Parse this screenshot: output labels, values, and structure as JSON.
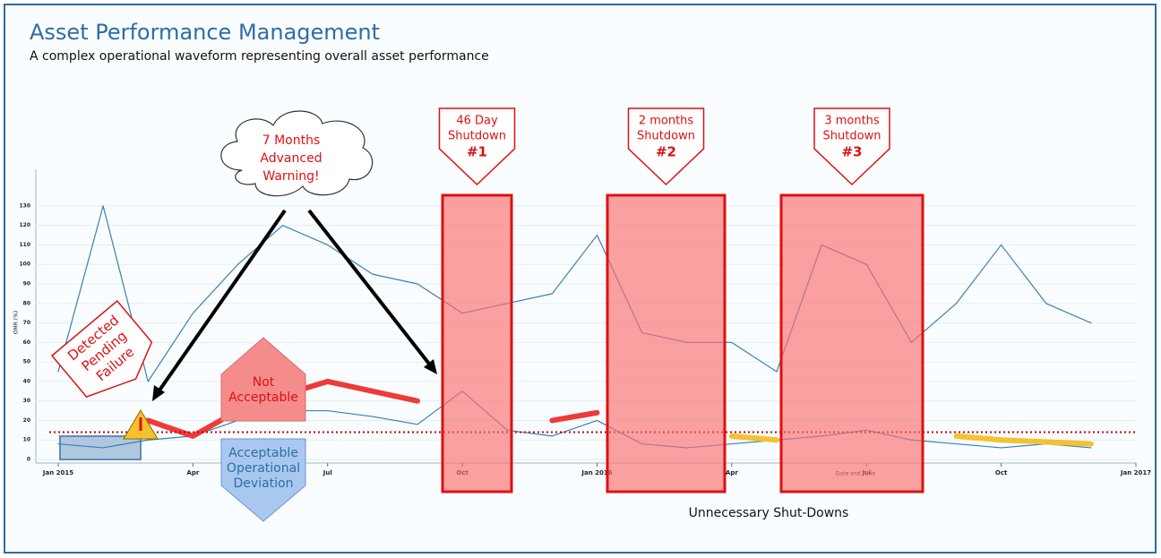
{
  "chart_data": {
    "type": "line",
    "title": "Asset Performance Management",
    "subtitle": "A complex operational waveform representing overall asset performance",
    "y_label": "OMR (%)",
    "x_label": "Date and Time",
    "x": [
      "2015-01",
      "2015-02",
      "2015-03",
      "2015-04",
      "2015-05",
      "2015-06",
      "2015-07",
      "2015-08",
      "2015-09",
      "2015-10",
      "2015-11",
      "2015-12",
      "2016-01",
      "2016-02",
      "2016-03",
      "2016-04",
      "2016-05",
      "2016-06",
      "2016-07",
      "2016-08",
      "2016-09",
      "2016-10",
      "2016-11",
      "2016-12"
    ],
    "xlim": [
      "2015-01",
      "2017-01"
    ],
    "xticks": [
      {
        "value": "2015-01",
        "label": "Jan 2015"
      },
      {
        "value": "2015-04",
        "label": "Apr"
      },
      {
        "value": "2015-07",
        "label": "Jul"
      },
      {
        "value": "2015-10",
        "label": "Oct"
      },
      {
        "value": "2016-01",
        "label": "Jan 2016"
      },
      {
        "value": "2016-04",
        "label": "Apr"
      },
      {
        "value": "2016-07",
        "label": "Jul"
      },
      {
        "value": "2016-10",
        "label": "Oct"
      },
      {
        "value": "2017-01",
        "label": "Jan 2017"
      }
    ],
    "ylim": [
      0,
      135
    ],
    "yticks": [
      0,
      10,
      20,
      30,
      40,
      50,
      60,
      70,
      80,
      90,
      100,
      110,
      120,
      130
    ],
    "threshold": 14,
    "series": [
      {
        "color": "#3a7fb5",
        "values": [
          45,
          130,
          40,
          75,
          100,
          120,
          110,
          95,
          90,
          75,
          80,
          85,
          115,
          65,
          60,
          60,
          45,
          110,
          100,
          60,
          80,
          110,
          80,
          70
        ]
      },
      {
        "color": "#3a7fb5",
        "values": [
          8,
          6,
          10,
          12,
          20,
          25,
          25,
          22,
          18,
          35,
          15,
          12,
          20,
          8,
          6,
          8,
          10,
          12,
          15,
          10,
          8,
          6,
          8,
          6
        ]
      },
      {
        "color": "#ee3a3a",
        "values": [
          null,
          null,
          20,
          12,
          25,
          33,
          40,
          35,
          30,
          null,
          null,
          20,
          24,
          null,
          null,
          null,
          null,
          null,
          null,
          null,
          null,
          null,
          null,
          null
        ]
      },
      {
        "color": "#f5c12e",
        "values": [
          null,
          null,
          null,
          null,
          null,
          null,
          null,
          null,
          null,
          null,
          null,
          null,
          null,
          null,
          null,
          12,
          10,
          null,
          null,
          null,
          12,
          10,
          9,
          8
        ]
      }
    ],
    "annotations": {
      "warning": [
        "7 Months",
        "Advanced",
        "Warning!"
      ],
      "detected": [
        "Detected",
        "Pending",
        "Failure"
      ],
      "not_acceptable": [
        "Not",
        "Acceptable"
      ],
      "acceptable": [
        "Acceptable",
        "Operational",
        "Deviation"
      ],
      "shutdowns": [
        {
          "line1": "46 Day",
          "line2": "Shutdown",
          "number": "#1"
        },
        {
          "line1": "2 months",
          "line2": "Shutdown",
          "number": "#2"
        },
        {
          "line1": "3 months",
          "line2": "Shutdown",
          "number": "#3"
        }
      ],
      "footer": "Unnecessary Shut-Downs"
    }
  }
}
